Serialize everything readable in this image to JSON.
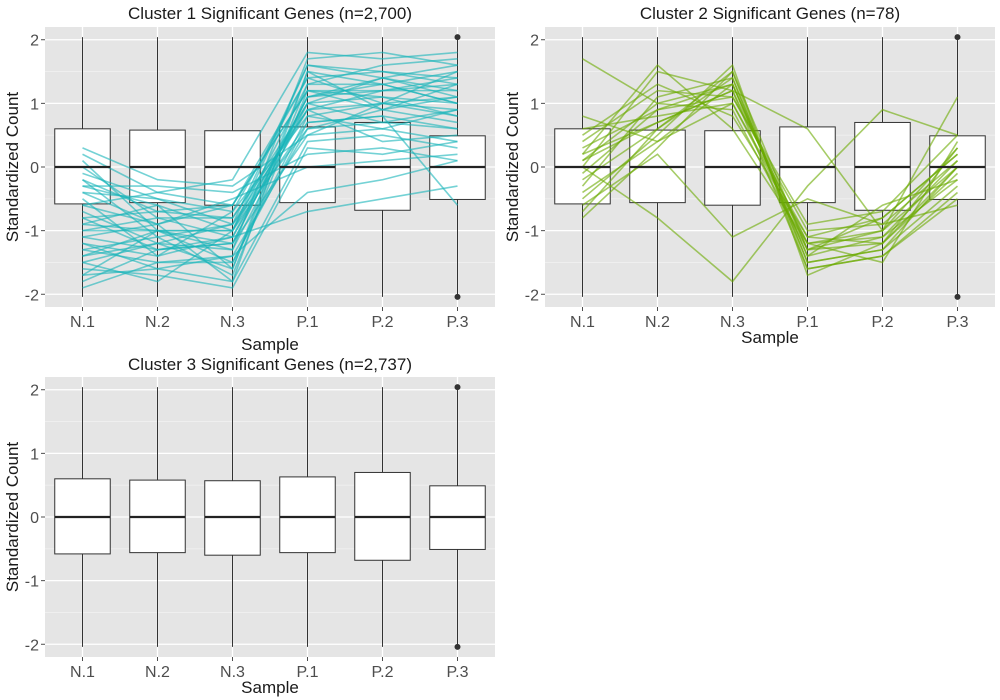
{
  "chart_data": [
    {
      "type": "box",
      "title": "Cluster 1 Significant Genes (n=2,700)",
      "xlabel": "Sample",
      "ylabel": "Standardized Count",
      "ylim": [
        -2.2,
        2.2
      ],
      "yticks": [
        -2,
        -1,
        0,
        1,
        2
      ],
      "categories": [
        "N.1",
        "N.2",
        "N.3",
        "P.1",
        "P.2",
        "P.3"
      ],
      "boxes": [
        {
          "category": "N.1",
          "min": -2.04,
          "q1": -0.58,
          "median": 0.0,
          "q3": 0.6,
          "max": 2.04
        },
        {
          "category": "N.2",
          "min": -2.04,
          "q1": -0.56,
          "median": 0.0,
          "q3": 0.58,
          "max": 2.04
        },
        {
          "category": "N.3",
          "min": -2.04,
          "q1": -0.6,
          "median": 0.0,
          "q3": 0.57,
          "max": 2.04
        },
        {
          "category": "P.1",
          "min": -2.04,
          "q1": -0.56,
          "median": 0.0,
          "q3": 0.63,
          "max": 2.04
        },
        {
          "category": "P.2",
          "min": -2.04,
          "q1": -0.68,
          "median": 0.0,
          "q3": 0.7,
          "max": 2.04
        },
        {
          "category": "P.3",
          "min": -2.04,
          "q1": -0.51,
          "median": 0.0,
          "q3": 0.49,
          "max": 2.04,
          "outliers": [
            2.04,
            -2.04
          ]
        }
      ],
      "profile_color": "#17B4B9",
      "profiles": [
        [
          0.2,
          -0.4,
          -0.6,
          1.2,
          0.9,
          1.3
        ],
        [
          -0.2,
          -0.7,
          -0.8,
          1.0,
          1.1,
          0.8
        ],
        [
          -0.6,
          -0.9,
          -0.6,
          1.4,
          1.0,
          0.9
        ],
        [
          -1.0,
          -0.8,
          -1.1,
          0.9,
          1.2,
          1.4
        ],
        [
          -1.4,
          -1.0,
          -1.5,
          0.7,
          0.8,
          0.6
        ],
        [
          -1.7,
          -1.6,
          -1.8,
          0.4,
          0.5,
          0.3
        ],
        [
          -0.8,
          -1.3,
          -1.2,
          1.1,
          1.3,
          1.0
        ],
        [
          0.3,
          -0.2,
          -0.3,
          0.5,
          0.6,
          0.4
        ],
        [
          -0.4,
          -0.5,
          -0.9,
          1.6,
          1.4,
          1.1
        ],
        [
          -1.2,
          -1.4,
          -0.7,
          0.8,
          1.0,
          1.5
        ],
        [
          -1.9,
          -1.5,
          -1.4,
          0.6,
          0.7,
          0.9
        ],
        [
          0.1,
          -1.0,
          -1.0,
          1.3,
          1.6,
          1.7
        ],
        [
          -0.9,
          -0.6,
          -1.6,
          1.5,
          0.9,
          0.7
        ],
        [
          -1.5,
          -1.8,
          -1.0,
          1.0,
          1.4,
          1.2
        ],
        [
          -0.3,
          -0.3,
          -0.4,
          0.2,
          0.3,
          0.1
        ],
        [
          -1.1,
          -0.9,
          -0.5,
          0.0,
          0.1,
          0.2
        ],
        [
          -0.7,
          -1.2,
          -1.3,
          1.7,
          1.8,
          1.6
        ],
        [
          -1.3,
          -1.1,
          -1.7,
          1.2,
          1.1,
          1.0
        ],
        [
          0.0,
          -0.8,
          -0.8,
          0.9,
          0.4,
          0.5
        ],
        [
          -0.5,
          -1.4,
          -1.1,
          1.1,
          1.2,
          1.3
        ],
        [
          -1.6,
          -1.7,
          -1.9,
          0.3,
          0.2,
          0.4
        ],
        [
          -1.8,
          -1.3,
          -1.2,
          0.5,
          1.0,
          0.8
        ],
        [
          -0.1,
          -0.5,
          -0.7,
          1.4,
          1.5,
          1.4
        ],
        [
          -1.0,
          -1.0,
          -1.0,
          0.7,
          0.8,
          -0.6
        ],
        [
          -1.2,
          -1.6,
          -1.4,
          -0.4,
          -0.2,
          0.1
        ],
        [
          -0.6,
          -0.4,
          -0.2,
          1.8,
          1.7,
          1.8
        ],
        [
          -1.4,
          -1.2,
          -1.6,
          1.3,
          1.3,
          1.5
        ],
        [
          -0.2,
          -1.1,
          -0.9,
          0.6,
          0.9,
          1.1
        ],
        [
          -1.7,
          -1.0,
          -1.3,
          1.0,
          0.7,
          0.6
        ],
        [
          -0.8,
          -0.7,
          -0.6,
          1.2,
          1.2,
          1.2
        ],
        [
          -1.3,
          -1.5,
          -1.5,
          0.8,
          0.6,
          0.9
        ],
        [
          -0.4,
          -0.9,
          -1.8,
          1.5,
          1.3,
          1.0
        ],
        [
          -1.1,
          -1.3,
          -1.1,
          -0.7,
          -0.5,
          -0.3
        ],
        [
          -0.9,
          -1.0,
          -1.2,
          1.1,
          1.4,
          1.6
        ],
        [
          -1.5,
          -1.2,
          -0.9,
          0.9,
          1.0,
          1.1
        ],
        [
          -0.3,
          -0.6,
          -1.0,
          1.6,
          1.5,
          1.3
        ]
      ]
    },
    {
      "type": "box",
      "title": "Cluster 2 Significant Genes (n=78)",
      "xlabel": "Sample",
      "ylabel": "Standardized Count",
      "ylim": [
        -2.2,
        2.2
      ],
      "yticks": [
        -2,
        -1,
        0,
        1,
        2
      ],
      "categories": [
        "N.1",
        "N.2",
        "N.3",
        "P.1",
        "P.2",
        "P.3"
      ],
      "boxes": [
        {
          "category": "N.1",
          "min": -2.04,
          "q1": -0.58,
          "median": 0.0,
          "q3": 0.6,
          "max": 2.04
        },
        {
          "category": "N.2",
          "min": -2.04,
          "q1": -0.56,
          "median": 0.0,
          "q3": 0.58,
          "max": 2.04
        },
        {
          "category": "N.3",
          "min": -2.04,
          "q1": -0.6,
          "median": 0.0,
          "q3": 0.57,
          "max": 2.04
        },
        {
          "category": "P.1",
          "min": -2.04,
          "q1": -0.56,
          "median": 0.0,
          "q3": 0.63,
          "max": 2.04
        },
        {
          "category": "P.2",
          "min": -2.04,
          "q1": -0.68,
          "median": 0.0,
          "q3": 0.7,
          "max": 2.04
        },
        {
          "category": "P.3",
          "min": -2.04,
          "q1": -0.51,
          "median": 0.0,
          "q3": 0.49,
          "max": 2.04,
          "outliers": [
            2.04,
            -2.04
          ]
        }
      ],
      "profile_color": "#6AAA00",
      "profiles": [
        [
          0.1,
          0.7,
          1.2,
          -1.2,
          -1.0,
          0.0
        ],
        [
          -0.4,
          0.4,
          1.3,
          -1.4,
          -1.1,
          -0.2
        ],
        [
          0.3,
          0.9,
          1.1,
          -1.0,
          -0.9,
          0.1
        ],
        [
          -0.2,
          0.6,
          1.4,
          -1.5,
          -1.3,
          -0.3
        ],
        [
          0.6,
          0.8,
          1.0,
          -1.1,
          -0.8,
          0.2
        ],
        [
          1.7,
          1.0,
          0.9,
          -1.3,
          -1.2,
          0.0
        ],
        [
          0.0,
          1.5,
          1.2,
          -1.6,
          -1.4,
          -0.4
        ],
        [
          -0.8,
          0.3,
          1.5,
          -1.3,
          -1.0,
          0.3
        ],
        [
          0.2,
          1.6,
          0.6,
          -1.2,
          -1.5,
          0.4
        ],
        [
          -0.5,
          0.5,
          1.6,
          -1.7,
          -1.2,
          -0.1
        ],
        [
          0.4,
          1.2,
          1.1,
          -0.9,
          -0.7,
          0.5
        ],
        [
          -0.1,
          0.9,
          1.3,
          -1.4,
          -0.6,
          -0.2
        ],
        [
          0.8,
          0.4,
          1.0,
          -1.2,
          -1.1,
          0.1
        ],
        [
          -0.3,
          1.1,
          1.4,
          -1.5,
          -1.3,
          0.0
        ],
        [
          0.2,
          0.7,
          1.2,
          0.6,
          -1.0,
          1.1
        ],
        [
          0.0,
          -0.8,
          -1.8,
          -0.3,
          0.9,
          0.5
        ],
        [
          -0.6,
          0.2,
          -1.1,
          -0.5,
          -0.9,
          -0.6
        ],
        [
          0.5,
          1.3,
          0.8,
          -1.1,
          -1.2,
          0.3
        ],
        [
          -0.7,
          0.6,
          1.5,
          -1.6,
          -1.4,
          -0.5
        ],
        [
          0.1,
          1.0,
          1.3,
          -1.3,
          -0.8,
          0.2
        ]
      ]
    },
    {
      "type": "box",
      "title": "Cluster 3 Significant Genes (n=2,737)",
      "xlabel": "Sample",
      "ylabel": "Standardized Count",
      "ylim": [
        -2.2,
        2.2
      ],
      "yticks": [
        -2,
        -1,
        0,
        1,
        2
      ],
      "categories": [
        "N.1",
        "N.2",
        "N.3",
        "P.1",
        "P.2",
        "P.3"
      ],
      "boxes": [
        {
          "category": "N.1",
          "min": -2.04,
          "q1": -0.58,
          "median": 0.0,
          "q3": 0.6,
          "max": 2.04
        },
        {
          "category": "N.2",
          "min": -2.04,
          "q1": -0.56,
          "median": 0.0,
          "q3": 0.58,
          "max": 2.04
        },
        {
          "category": "N.3",
          "min": -2.04,
          "q1": -0.6,
          "median": 0.0,
          "q3": 0.57,
          "max": 2.04
        },
        {
          "category": "P.1",
          "min": -2.04,
          "q1": -0.56,
          "median": 0.0,
          "q3": 0.63,
          "max": 2.04
        },
        {
          "category": "P.2",
          "min": -2.04,
          "q1": -0.68,
          "median": 0.0,
          "q3": 0.7,
          "max": 2.04
        },
        {
          "category": "P.3",
          "min": -2.04,
          "q1": -0.51,
          "median": 0.0,
          "q3": 0.49,
          "max": 2.04,
          "outliers": [
            2.04,
            -2.04
          ]
        }
      ],
      "profile_color": "",
      "profiles": []
    }
  ]
}
